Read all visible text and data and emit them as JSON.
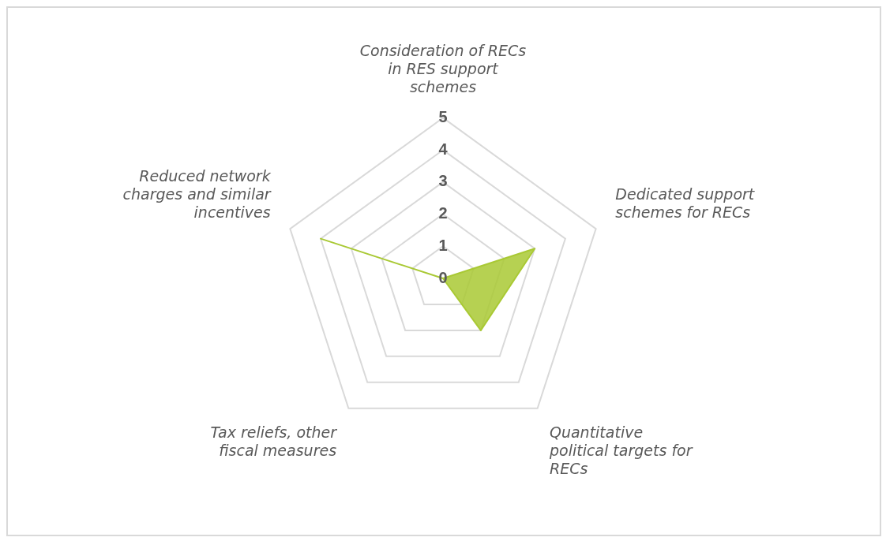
{
  "chart_data": {
    "type": "radar",
    "categories": [
      "Consideration of RECs in RES support schemes",
      "Dedicated support schemes for RECs",
      "Quantitative political targets for RECs",
      "Tax reliefs, other fiscal measures",
      "Reduced network charges and similar incentives"
    ],
    "series": [
      {
        "color": "#a9c934",
        "values": [
          0,
          3,
          2,
          0,
          4
        ]
      }
    ],
    "ylim": [
      0,
      5
    ],
    "yticks": [
      0,
      1,
      2,
      3,
      4,
      5
    ],
    "grid": true,
    "legend": false
  }
}
